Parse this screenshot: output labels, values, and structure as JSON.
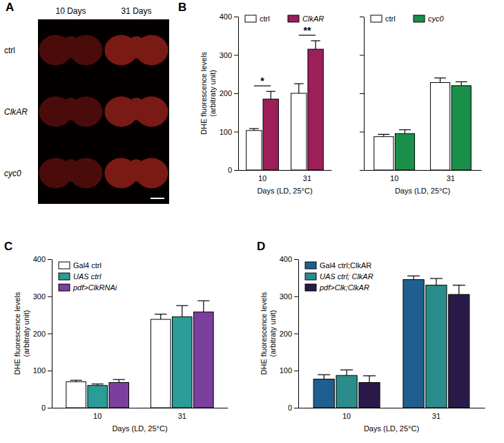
{
  "image_panel": {
    "title": "A",
    "columns": [
      "10 Days",
      "31 Days"
    ],
    "rows": [
      "ctrl",
      "ClkAR",
      "cyc0"
    ]
  },
  "chart_data": [
    {
      "type": "bar",
      "title": "B",
      "y_label": [
        "DHE fluorescence levels",
        "(arbitraty unit)"
      ],
      "x_label": "Days (LD, 25°C)",
      "categories": [
        "10",
        "31"
      ],
      "series": [
        {
          "name": "ctrl",
          "color": "#ffffff",
          "values": [
            103,
            200
          ],
          "errors": [
            5,
            25
          ]
        },
        {
          "name": "ClkAR",
          "color": "#9c1f5a",
          "values": [
            185,
            315
          ],
          "errors": [
            20,
            22
          ]
        }
      ],
      "annotations": [
        "*",
        "**"
      ],
      "ylim": [
        0,
        400
      ],
      "yticks": [
        0,
        100,
        200,
        300,
        400
      ],
      "legend": "top"
    },
    {
      "type": "bar",
      "x_label": "Days (LD, 25°C)",
      "categories": [
        "10",
        "31"
      ],
      "series": [
        {
          "name": "ctrl",
          "color": "#ffffff",
          "values": [
            87,
            228
          ],
          "errors": [
            6,
            12
          ]
        },
        {
          "name": "cyc0",
          "color": "#1a8f4a",
          "values": [
            95,
            220
          ],
          "errors": [
            10,
            10
          ]
        }
      ],
      "ylim": [
        0,
        400
      ],
      "yticks": [
        0,
        100,
        200,
        300,
        400
      ],
      "legend": "top",
      "tick_labels": "x"
    },
    {
      "type": "bar",
      "title": "C",
      "y_label": [
        "DHE fluorescence levels",
        "(arbitraty unit)"
      ],
      "x_label": "Days (LD, 25°C)",
      "categories": [
        "10",
        "31"
      ],
      "series": [
        {
          "name": "Gal4 ctrl",
          "color": "#ffffff",
          "values": [
            70,
            238
          ],
          "errors": [
            4,
            14
          ]
        },
        {
          "name": "UAS ctrl",
          "color": "#2a9d96",
          "values": [
            60,
            245
          ],
          "errors": [
            4,
            30
          ]
        },
        {
          "name": "pdf>ClkRNAi",
          "color": "#7b3f9e",
          "values": [
            68,
            258
          ],
          "errors": [
            8,
            30
          ]
        }
      ],
      "ylim": [
        0,
        400
      ],
      "yticks": [
        0,
        100,
        200,
        300,
        400
      ],
      "legend": "top-left"
    },
    {
      "type": "bar",
      "title": "D",
      "y_label": [
        "DHE fluorescence levels",
        "(arbitraty unit)"
      ],
      "x_label": "Days (LD, 25°C)",
      "categories": [
        "10",
        "31"
      ],
      "series": [
        {
          "name": "Gal4 ctrl;ClkAR",
          "color": "#1f5f8f",
          "values": [
            77,
            345
          ],
          "errors": [
            12,
            10
          ]
        },
        {
          "name": "UAS ctrl; ClkAR",
          "color": "#2b8c8c",
          "values": [
            87,
            330
          ],
          "errors": [
            15,
            18
          ]
        },
        {
          "name": "pdf>Clk;ClkAR",
          "color": "#2a1a4a",
          "values": [
            68,
            305
          ],
          "errors": [
            18,
            25
          ]
        }
      ],
      "ylim": [
        0,
        400
      ],
      "yticks": [
        0,
        100,
        200,
        300,
        400
      ],
      "legend": "top-left"
    }
  ]
}
